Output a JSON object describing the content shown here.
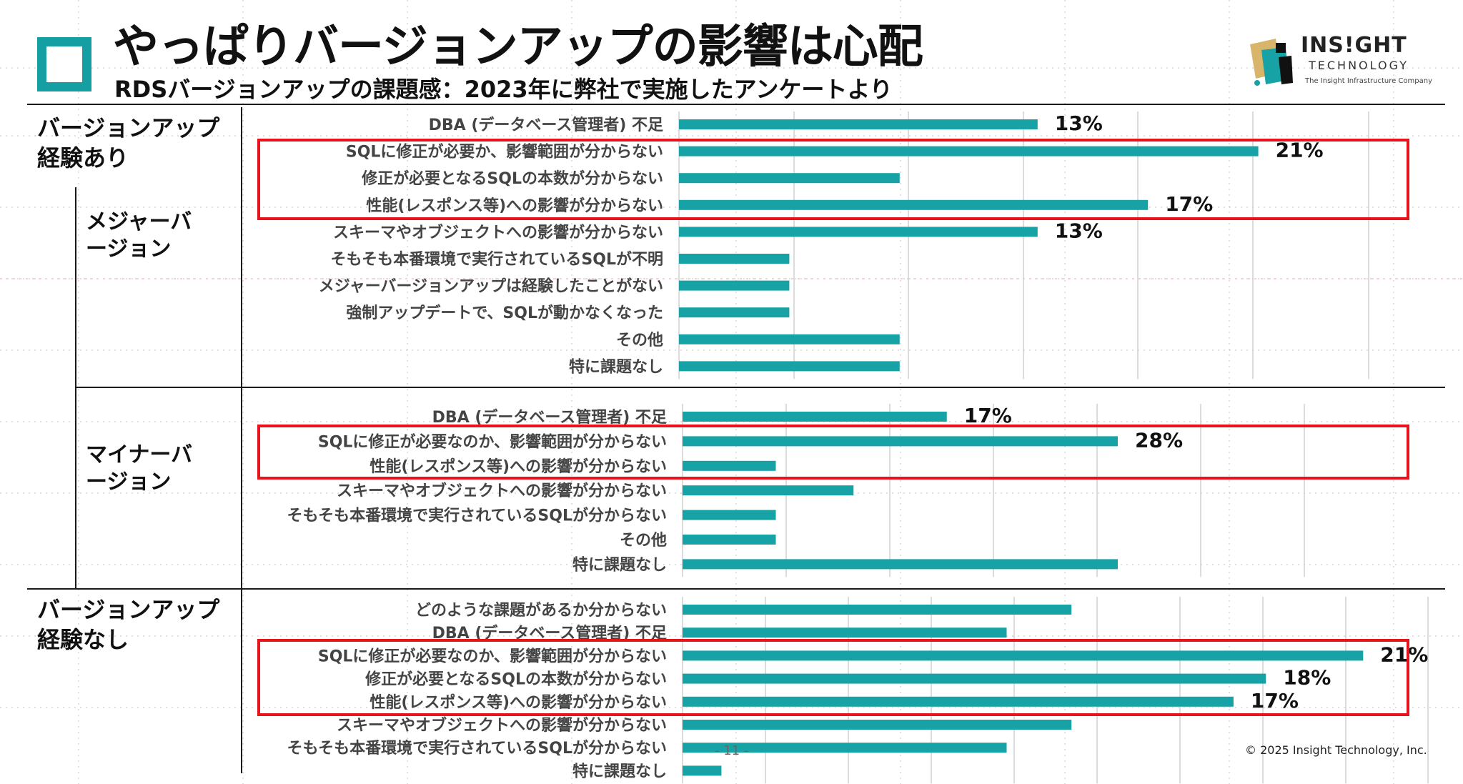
{
  "header": {
    "title": "やっぱりバージョンアップの影響は心配",
    "subtitle": "RDSバージョンアップの課題感：2023年に弊社で実施したアンケートより"
  },
  "brand": {
    "name": "INS!GHT",
    "sub": "TECHNOLOGY",
    "tagline": "The Insight Infrastructure Company"
  },
  "sections": {
    "experienced": "バージョンアップ\n経験あり",
    "major": "メジャーバ\nージョン",
    "minor": "マイナーバ\nージョン",
    "not_experienced": "バージョンアップ\n経験なし"
  },
  "footer": {
    "page": "- 11 -",
    "copyright": "© 2025 Insight Technology, Inc."
  },
  "colors": {
    "bar": "#17a2a6",
    "highlight": "#e8141b",
    "grid": "#d0d0d0"
  },
  "chart_data": [
    {
      "type": "bar",
      "orientation": "horizontal",
      "group": "メジャーバージョン",
      "categories": [
        "DBA (データベース管理者) 不足",
        "SQLに修正が必要か、影響範囲が分からない",
        "修正が必要となるSQLの本数が分からない",
        "性能(レスポンス等)への影響が分からない",
        "スキーマやオブジェクトへの影響が分からない",
        "そもそも本番環境で実行されているSQLが不明",
        "メジャーバージョンアップは経験したことがない",
        "強制アップデートで、SQLが動かなくなった",
        "その他",
        "特に課題なし"
      ],
      "values": [
        13,
        21,
        8,
        17,
        13,
        4,
        4,
        4,
        8,
        8
      ],
      "data_labels": [
        "13%",
        "21%",
        "",
        "17%",
        "13%",
        "",
        "",
        "",
        "",
        ""
      ],
      "xlim": [
        0,
        25
      ],
      "highlighted_range": [
        1,
        3
      ]
    },
    {
      "type": "bar",
      "orientation": "horizontal",
      "group": "マイナーバージョン",
      "categories": [
        "DBA (データベース管理者) 不足",
        "SQLに修正が必要なのか、影響範囲が分からない",
        "性能(レスポンス等)への影響が分からない",
        "スキーマやオブジェクトへの影響が分からない",
        "そもそも本番環境で実行されているSQLが分からない",
        "その他",
        "特に課題なし"
      ],
      "values": [
        17,
        28,
        6,
        11,
        6,
        6,
        28
      ],
      "data_labels": [
        "17%",
        "28%",
        "",
        "",
        "",
        "",
        ""
      ],
      "xlim": [
        0,
        40
      ],
      "highlighted_range": [
        1,
        2
      ]
    },
    {
      "type": "bar",
      "orientation": "horizontal",
      "group": "バージョンアップ経験なし",
      "categories": [
        "どのような課題があるか分からない",
        "DBA (データベース管理者) 不足",
        "SQLに修正が必要なのか、影響範囲が分からない",
        "修正が必要となるSQLの本数が分からない",
        "性能(レスポンス等)への影響が分からない",
        "スキーマやオブジェクトへの影響が分からない",
        "そもそも本番環境で実行されているSQLが分からない",
        "特に課題なし"
      ],
      "values": [
        12,
        10,
        21,
        18,
        17,
        12,
        10,
        1.2
      ],
      "data_labels": [
        "",
        "",
        "21%",
        "18%",
        "17%",
        "",
        "",
        ""
      ],
      "xlim": [
        0,
        23
      ],
      "highlighted_range": [
        2,
        4
      ]
    }
  ]
}
